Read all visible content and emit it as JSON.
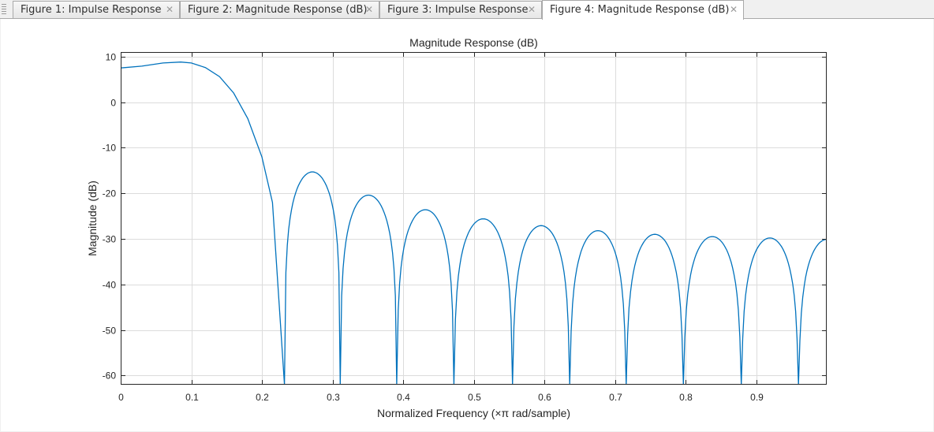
{
  "tabs": [
    {
      "label": "Figure 1: Impulse Response",
      "active": false
    },
    {
      "label": "Figure 2: Magnitude Response (dB)",
      "active": false
    },
    {
      "label": "Figure 3: Impulse Response",
      "active": false
    },
    {
      "label": "Figure 4: Magnitude Response (dB)",
      "active": true
    }
  ],
  "tab_close_glyph": "✕",
  "chart_data": {
    "type": "line",
    "title": "Magnitude Response (dB)",
    "xlabel": "Normalized Frequency (×π rad/sample)",
    "ylabel": "Magnitude (dB)",
    "xlim": [
      0,
      1
    ],
    "ylim": [
      -62,
      11
    ],
    "xticks": [
      "0",
      "0.1",
      "0.2",
      "0.3",
      "0.4",
      "0.5",
      "0.6",
      "0.7",
      "0.8",
      "0.9"
    ],
    "yticks": [
      "10",
      "0",
      "-10",
      "-20",
      "-30",
      "-40",
      "-50",
      "-60"
    ],
    "grid": true,
    "line_color": "#0072bd",
    "series": [
      {
        "nulls": [
          0.232,
          0.311,
          0.391,
          0.472,
          0.555,
          0.636,
          0.716,
          0.797,
          0.879,
          0.96
        ],
        "passband": {
          "x": [
            0,
            0.03,
            0.06,
            0.085,
            0.1,
            0.12,
            0.14,
            0.16,
            0.18,
            0.2,
            0.215,
            0.232
          ],
          "y": [
            7.5,
            7.9,
            8.6,
            8.8,
            8.6,
            7.6,
            5.6,
            2.0,
            -3.6,
            -12,
            -22,
            -62
          ]
        },
        "sidelobes": [
          {
            "x": 0.265,
            "y": -15.3
          },
          {
            "x": 0.347,
            "y": -20.4
          },
          {
            "x": 0.428,
            "y": -23.6
          },
          {
            "x": 0.511,
            "y": -25.6
          },
          {
            "x": 0.594,
            "y": -27.1
          },
          {
            "x": 0.675,
            "y": -28.2
          },
          {
            "x": 0.756,
            "y": -29.0
          },
          {
            "x": 0.838,
            "y": -29.5
          },
          {
            "x": 0.919,
            "y": -29.8
          }
        ],
        "end": {
          "x": 1.0,
          "y": -30.1
        }
      }
    ]
  }
}
